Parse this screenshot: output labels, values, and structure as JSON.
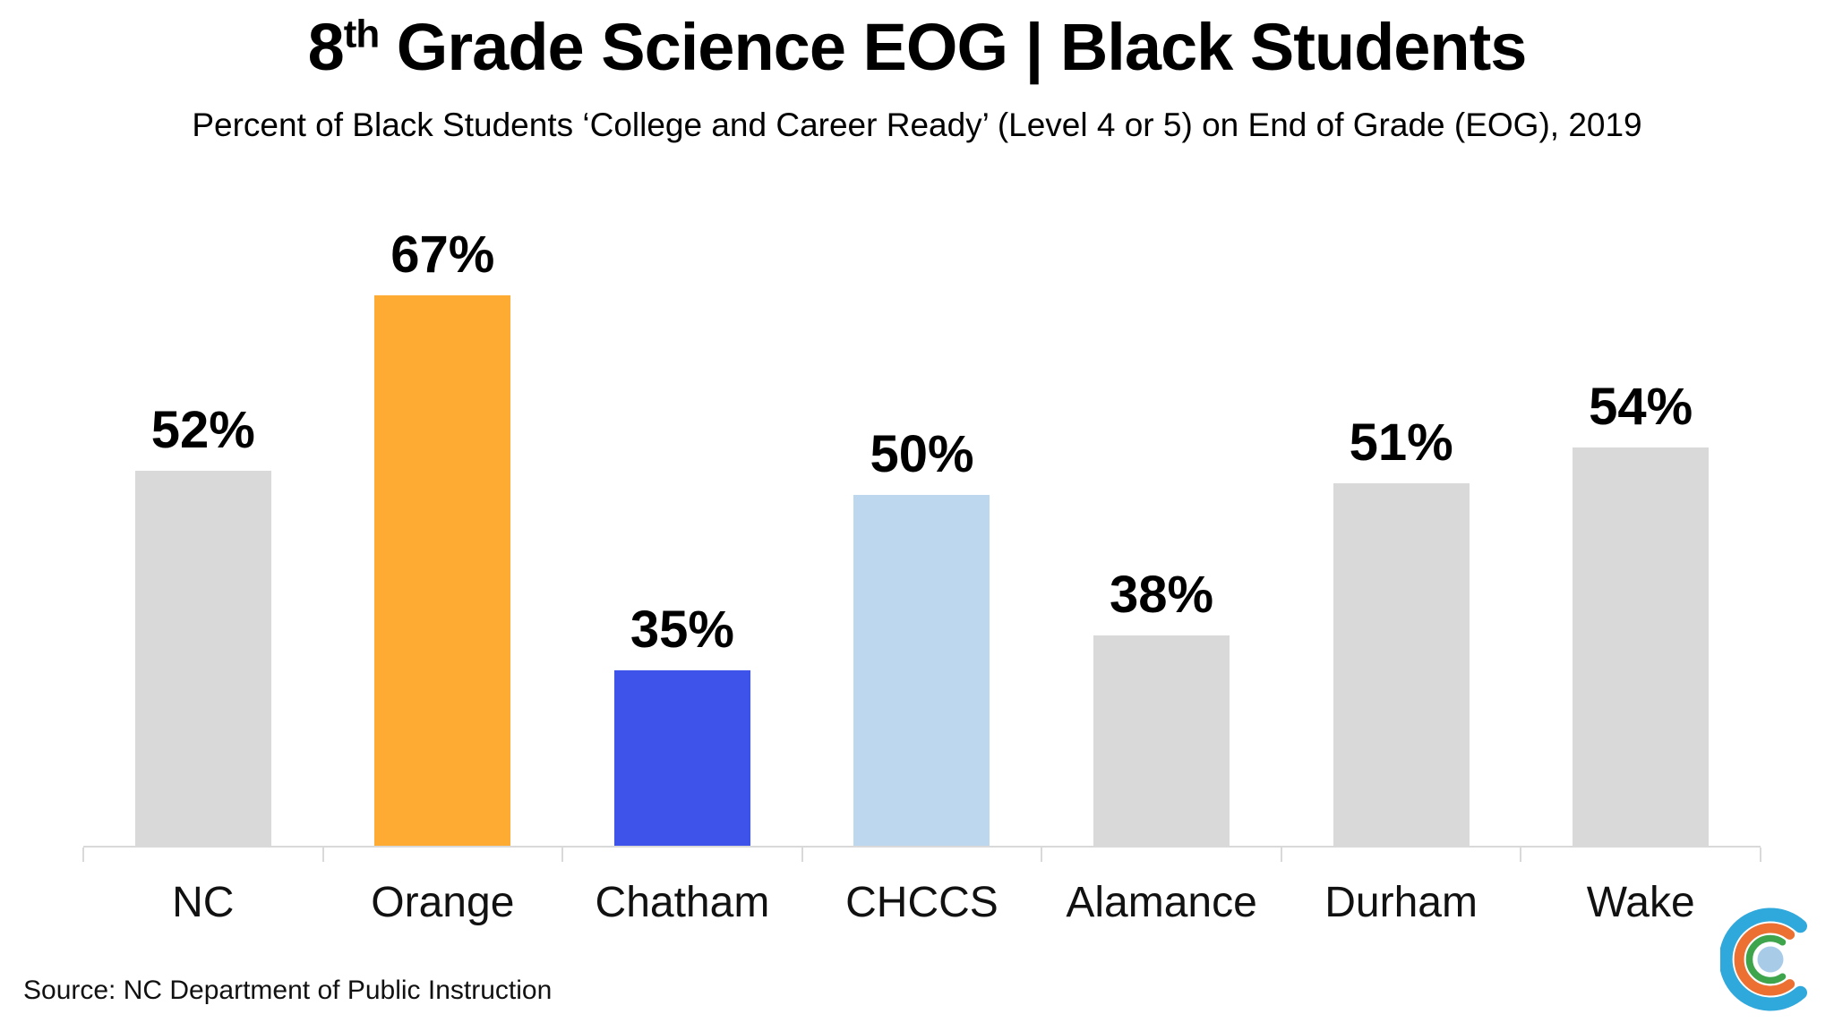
{
  "page": {
    "background": "#ffffff"
  },
  "header": {
    "title_prefix": "8",
    "title_superscript": "th",
    "title_rest": " Grade Science EOG | Black Students",
    "subtitle": "Percent of Black Students ‘College and Career Ready’ (Level 4 or 5) on End of Grade (EOG), 2019"
  },
  "footer": {
    "source": "Source: NC Department of Public Instruction"
  },
  "logo": {
    "description": "concentric open-C arcs with center dot",
    "colors": {
      "outer_arc": "#2fa8dc",
      "middle_arc": "#eb7032",
      "inner_arc": "#3fa54c",
      "center_dot": "#a8cbe8"
    }
  },
  "chart_data": {
    "type": "bar",
    "title": "8th Grade Science EOG | Black Students",
    "subtitle": "Percent of Black Students ‘College and Career Ready’ (Level 4 or 5) on End of Grade (EOG), 2019",
    "categories": [
      "NC",
      "Orange",
      "Chatham",
      "CHCCS",
      "Alamance",
      "Durham",
      "Wake"
    ],
    "values": [
      52,
      67,
      35,
      50,
      38,
      51,
      54
    ],
    "labels": [
      "52%",
      "67%",
      "35%",
      "50%",
      "38%",
      "51%",
      "54%"
    ],
    "bar_colors": [
      "#d9d9d9",
      "#fdab33",
      "#3d53ea",
      "#bcd7ee",
      "#d9d9d9",
      "#d9d9d9",
      "#d9d9d9"
    ],
    "unit": "%",
    "xlabel": "",
    "ylabel": "",
    "ylim": [
      20,
      70
    ],
    "grid": false,
    "legend": false,
    "value_labels": "above bars",
    "axis_line_color": "#d9d9d9",
    "source": "Source: NC Department of Public Instruction"
  }
}
